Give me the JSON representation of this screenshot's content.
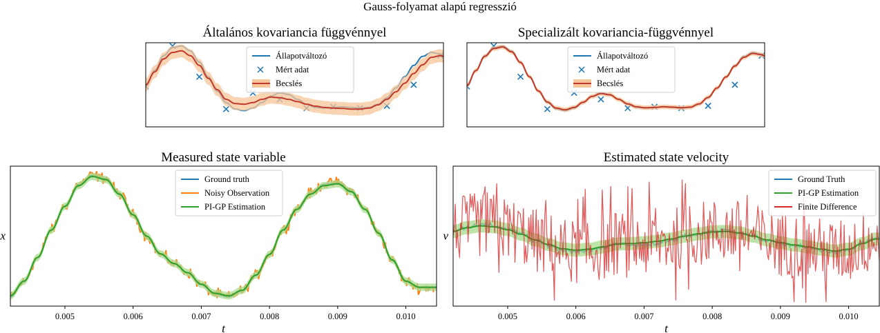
{
  "suptitle": "Gauss-folyamat alapú regresszió",
  "colors": {
    "blue": "#1f77b4",
    "orange": "#ff7f0e",
    "green": "#2ca02c",
    "red_est": "#c0392b",
    "red_fd": "#d62728",
    "band_orange": "#f7c59a",
    "band_green": "#a8dc8c"
  },
  "chart_data": [
    {
      "id": "gp-general",
      "type": "line",
      "title": "Általános kovariancia függvénnyel",
      "xlabel": "",
      "ylabel": "",
      "xlim": [
        0,
        1
      ],
      "ylim": [
        -1.3,
        1.3
      ],
      "ticks": "none",
      "legend": {
        "position": "top-center",
        "entries": [
          "Állapotváltozó",
          "Mért adat",
          "Becslés"
        ]
      },
      "series": [
        {
          "name": "Állapotváltozó",
          "kind": "line",
          "color": "#1f77b4",
          "x": [
            0,
            0.03,
            0.06,
            0.09,
            0.12,
            0.15,
            0.18,
            0.21,
            0.24,
            0.27,
            0.3,
            0.33,
            0.36,
            0.39,
            0.42,
            0.45,
            0.48,
            0.51,
            0.54,
            0.57,
            0.6,
            0.63,
            0.66,
            0.69,
            0.72,
            0.75,
            0.78,
            0.81,
            0.84,
            0.87,
            0.9,
            0.93,
            0.96,
            0.99,
            1.0
          ],
          "y": [
            -0.05,
            0.45,
            0.9,
            1.15,
            1.2,
            1.05,
            0.7,
            0.25,
            -0.2,
            -0.55,
            -0.75,
            -0.8,
            -0.72,
            -0.55,
            -0.35,
            -0.25,
            -0.3,
            -0.45,
            -0.6,
            -0.7,
            -0.72,
            -0.7,
            -0.68,
            -0.7,
            -0.72,
            -0.7,
            -0.6,
            -0.4,
            -0.1,
            0.25,
            0.6,
            0.88,
            1.0,
            0.95,
            0.9
          ]
        },
        {
          "name": "Mért adat",
          "kind": "markers",
          "color": "#1f77b4",
          "x": [
            0.0,
            0.09,
            0.18,
            0.27,
            0.36,
            0.45,
            0.54,
            0.63,
            0.72,
            0.81,
            0.9,
            0.99
          ],
          "y": [
            -0.05,
            1.2,
            0.25,
            -0.75,
            -0.25,
            -0.45,
            -0.72,
            -0.68,
            -0.72,
            -0.65,
            0.0,
            0.9
          ]
        },
        {
          "name": "Becslés",
          "kind": "line-band",
          "color": "#c0392b",
          "band_color": "#f7c59a",
          "x": [
            0,
            0.03,
            0.06,
            0.09,
            0.12,
            0.15,
            0.18,
            0.21,
            0.24,
            0.27,
            0.3,
            0.33,
            0.36,
            0.39,
            0.42,
            0.45,
            0.48,
            0.51,
            0.54,
            0.57,
            0.6,
            0.63,
            0.66,
            0.69,
            0.72,
            0.75,
            0.78,
            0.81,
            0.84,
            0.87,
            0.9,
            0.93,
            0.96,
            0.99,
            1.0
          ],
          "y": [
            0.0,
            0.4,
            0.8,
            1.0,
            1.05,
            0.9,
            0.6,
            0.2,
            -0.15,
            -0.45,
            -0.58,
            -0.6,
            -0.55,
            -0.45,
            -0.38,
            -0.4,
            -0.45,
            -0.52,
            -0.6,
            -0.66,
            -0.7,
            -0.72,
            -0.73,
            -0.75,
            -0.75,
            -0.72,
            -0.62,
            -0.45,
            -0.22,
            0.05,
            0.35,
            0.62,
            0.85,
            0.9,
            0.88
          ],
          "band": 0.2
        }
      ]
    },
    {
      "id": "gp-special",
      "type": "line",
      "title": "Specializált kovariancia-függvénnyel",
      "xlabel": "",
      "ylabel": "",
      "xlim": [
        0,
        1
      ],
      "ylim": [
        -1.3,
        1.3
      ],
      "ticks": "none",
      "legend": {
        "position": "top-center",
        "entries": [
          "Állapotváltozó",
          "Mért adat",
          "Becslés"
        ]
      },
      "series": [
        {
          "name": "Állapotváltozó",
          "kind": "line",
          "color": "#1f77b4",
          "x": [
            0,
            0.03,
            0.06,
            0.09,
            0.12,
            0.15,
            0.18,
            0.21,
            0.24,
            0.27,
            0.3,
            0.33,
            0.36,
            0.39,
            0.42,
            0.45,
            0.48,
            0.51,
            0.54,
            0.57,
            0.6,
            0.63,
            0.66,
            0.69,
            0.72,
            0.75,
            0.78,
            0.81,
            0.84,
            0.87,
            0.9,
            0.93,
            0.96,
            0.99,
            1.0
          ],
          "y": [
            -0.05,
            0.45,
            0.9,
            1.15,
            1.2,
            1.05,
            0.7,
            0.25,
            -0.2,
            -0.55,
            -0.75,
            -0.8,
            -0.72,
            -0.55,
            -0.35,
            -0.25,
            -0.3,
            -0.45,
            -0.6,
            -0.7,
            -0.72,
            -0.7,
            -0.68,
            -0.7,
            -0.72,
            -0.7,
            -0.6,
            -0.4,
            -0.1,
            0.25,
            0.6,
            0.88,
            1.0,
            0.95,
            0.9
          ]
        },
        {
          "name": "Mért adat",
          "kind": "markers",
          "color": "#1f77b4",
          "x": [
            0.0,
            0.09,
            0.18,
            0.27,
            0.36,
            0.45,
            0.54,
            0.63,
            0.72,
            0.81,
            0.9,
            0.99
          ],
          "y": [
            -0.05,
            1.2,
            0.25,
            -0.75,
            -0.25,
            -0.45,
            -0.72,
            -0.68,
            -0.72,
            -0.65,
            0.0,
            0.9
          ]
        },
        {
          "name": "Becslés",
          "kind": "line-band",
          "color": "#c0392b",
          "band_color": "#f7c59a",
          "x": [
            0,
            0.03,
            0.06,
            0.09,
            0.12,
            0.15,
            0.18,
            0.21,
            0.24,
            0.27,
            0.3,
            0.33,
            0.36,
            0.39,
            0.42,
            0.45,
            0.48,
            0.51,
            0.54,
            0.57,
            0.6,
            0.63,
            0.66,
            0.69,
            0.72,
            0.75,
            0.78,
            0.81,
            0.84,
            0.87,
            0.9,
            0.93,
            0.96,
            0.99,
            1.0
          ],
          "y": [
            -0.02,
            0.44,
            0.88,
            1.12,
            1.17,
            1.02,
            0.69,
            0.25,
            -0.19,
            -0.53,
            -0.72,
            -0.77,
            -0.7,
            -0.54,
            -0.36,
            -0.27,
            -0.31,
            -0.45,
            -0.59,
            -0.68,
            -0.71,
            -0.7,
            -0.68,
            -0.69,
            -0.71,
            -0.69,
            -0.59,
            -0.39,
            -0.1,
            0.24,
            0.58,
            0.85,
            0.97,
            0.93,
            0.89
          ],
          "band": 0.07
        }
      ]
    },
    {
      "id": "measured-state",
      "type": "line",
      "title": "Measured state variable",
      "xlabel": "t",
      "ylabel": "x",
      "xlim": [
        0.0042,
        0.01045
      ],
      "ylim": [
        -1.15,
        1.15
      ],
      "xticks": [
        0.005,
        0.006,
        0.007,
        0.008,
        0.009,
        0.01
      ],
      "xticklabels": [
        "0.005",
        "0.006",
        "0.007",
        "0.008",
        "0.009",
        "0.010"
      ],
      "legend": {
        "position": "top-center",
        "entries": [
          "Ground truth",
          "Noisy Observation",
          "PI-GP Estimation"
        ]
      },
      "series": [
        {
          "name": "Ground truth",
          "color": "#1f77b4",
          "x": [
            0.0042,
            0.0044,
            0.0046,
            0.0048,
            0.005,
            0.0052,
            0.0054,
            0.0056,
            0.0058,
            0.006,
            0.0062,
            0.0064,
            0.0066,
            0.0068,
            0.007,
            0.0072,
            0.0074,
            0.0076,
            0.0078,
            0.008,
            0.0082,
            0.0084,
            0.0086,
            0.0088,
            0.009,
            0.0092,
            0.0094,
            0.0096,
            0.0098,
            0.01,
            0.0102,
            0.0104
          ],
          "y": [
            -1.0,
            -0.75,
            -0.35,
            0.1,
            0.5,
            0.85,
            1.0,
            0.95,
            0.7,
            0.35,
            0.0,
            -0.3,
            -0.45,
            -0.6,
            -0.8,
            -0.95,
            -1.0,
            -0.9,
            -0.65,
            -0.3,
            0.1,
            0.45,
            0.7,
            0.85,
            0.88,
            0.75,
            0.45,
            0.05,
            -0.4,
            -0.75,
            -0.85,
            -0.85
          ]
        },
        {
          "name": "Noisy Observation",
          "color": "#ff7f0e",
          "noise": 0.07,
          "x": [
            0.0042,
            0.0044,
            0.0046,
            0.0048,
            0.005,
            0.0052,
            0.0054,
            0.0056,
            0.0058,
            0.006,
            0.0062,
            0.0064,
            0.0066,
            0.0068,
            0.007,
            0.0072,
            0.0074,
            0.0076,
            0.0078,
            0.008,
            0.0082,
            0.0084,
            0.0086,
            0.0088,
            0.009,
            0.0092,
            0.0094,
            0.0096,
            0.0098,
            0.01,
            0.0102,
            0.0104
          ],
          "y": [
            -1.0,
            -0.75,
            -0.35,
            0.1,
            0.5,
            0.85,
            1.0,
            0.95,
            0.7,
            0.35,
            0.0,
            -0.3,
            -0.45,
            -0.6,
            -0.8,
            -0.95,
            -1.0,
            -0.9,
            -0.65,
            -0.3,
            0.1,
            0.45,
            0.7,
            0.85,
            0.88,
            0.75,
            0.45,
            0.05,
            -0.4,
            -0.75,
            -0.85,
            -0.85
          ]
        },
        {
          "name": "PI-GP Estimation",
          "color": "#2ca02c",
          "band": 0.06,
          "band_color": "#a8dc8c",
          "x": [
            0.0042,
            0.0044,
            0.0046,
            0.0048,
            0.005,
            0.0052,
            0.0054,
            0.0056,
            0.0058,
            0.006,
            0.0062,
            0.0064,
            0.0066,
            0.0068,
            0.007,
            0.0072,
            0.0074,
            0.0076,
            0.0078,
            0.008,
            0.0082,
            0.0084,
            0.0086,
            0.0088,
            0.009,
            0.0092,
            0.0094,
            0.0096,
            0.0098,
            0.01,
            0.0102,
            0.0104
          ],
          "y": [
            -0.98,
            -0.74,
            -0.35,
            0.1,
            0.49,
            0.83,
            0.98,
            0.93,
            0.69,
            0.35,
            0.0,
            -0.29,
            -0.45,
            -0.6,
            -0.79,
            -0.94,
            -0.98,
            -0.89,
            -0.64,
            -0.3,
            0.1,
            0.44,
            0.69,
            0.83,
            0.86,
            0.73,
            0.44,
            0.05,
            -0.39,
            -0.74,
            -0.84,
            -0.84
          ]
        }
      ]
    },
    {
      "id": "estimated-velocity",
      "type": "line",
      "title": "Estimated state velocity",
      "xlabel": "t",
      "ylabel": "v",
      "xlim": [
        0.0042,
        0.01045
      ],
      "ylim": [
        -1.5,
        1.5
      ],
      "xticks": [
        0.005,
        0.006,
        0.007,
        0.008,
        0.009,
        0.01
      ],
      "xticklabels": [
        "0.005",
        "0.006",
        "0.007",
        "0.008",
        "0.009",
        "0.010"
      ],
      "legend": {
        "position": "top-right",
        "entries": [
          "Ground Truth",
          "PI-GP Estimation",
          "Finite Difference"
        ]
      },
      "series": [
        {
          "name": "Ground Truth",
          "color": "#1f77b4",
          "noise": 0.04,
          "x": [
            0.0042,
            0.0044,
            0.0046,
            0.0048,
            0.005,
            0.0052,
            0.0054,
            0.0056,
            0.0058,
            0.006,
            0.0062,
            0.0064,
            0.0066,
            0.0068,
            0.007,
            0.0072,
            0.0074,
            0.0076,
            0.0078,
            0.008,
            0.0082,
            0.0084,
            0.0086,
            0.0088,
            0.009,
            0.0092,
            0.0094,
            0.0096,
            0.0098,
            0.01,
            0.0102,
            0.0104
          ],
          "y": [
            0.1,
            0.2,
            0.25,
            0.22,
            0.15,
            0.05,
            -0.1,
            -0.2,
            -0.3,
            -0.32,
            -0.3,
            -0.25,
            -0.15,
            -0.2,
            -0.18,
            -0.15,
            -0.1,
            0.0,
            0.05,
            0.1,
            0.12,
            0.08,
            0.0,
            -0.1,
            -0.15,
            -0.2,
            -0.25,
            -0.3,
            -0.35,
            -0.3,
            -0.15,
            -0.05
          ]
        },
        {
          "name": "PI-GP Estimation",
          "color": "#2ca02c",
          "band": 0.14,
          "band_color": "#a8dc8c",
          "x": [
            0.0042,
            0.0044,
            0.0046,
            0.0048,
            0.005,
            0.0052,
            0.0054,
            0.0056,
            0.0058,
            0.006,
            0.0062,
            0.0064,
            0.0066,
            0.0068,
            0.007,
            0.0072,
            0.0074,
            0.0076,
            0.0078,
            0.008,
            0.0082,
            0.0084,
            0.0086,
            0.0088,
            0.009,
            0.0092,
            0.0094,
            0.0096,
            0.0098,
            0.01,
            0.0102,
            0.0104
          ],
          "y": [
            0.1,
            0.18,
            0.22,
            0.2,
            0.14,
            0.04,
            -0.08,
            -0.18,
            -0.27,
            -0.3,
            -0.28,
            -0.23,
            -0.17,
            -0.16,
            -0.14,
            -0.11,
            -0.06,
            0.0,
            0.05,
            0.09,
            0.1,
            0.07,
            0.0,
            -0.08,
            -0.14,
            -0.19,
            -0.23,
            -0.28,
            -0.32,
            -0.28,
            -0.16,
            -0.06
          ]
        },
        {
          "name": "Finite Difference",
          "color": "#d62728",
          "amplitude": 0.7,
          "x": [
            0.0042,
            0.0044,
            0.0046,
            0.0048,
            0.005,
            0.0052,
            0.0054,
            0.0056,
            0.0058,
            0.006,
            0.0062,
            0.0064,
            0.0066,
            0.0068,
            0.007,
            0.0072,
            0.0074,
            0.0076,
            0.0078,
            0.008,
            0.0082,
            0.0084,
            0.0086,
            0.0088,
            0.009,
            0.0092,
            0.0094,
            0.0096,
            0.0098,
            0.01,
            0.0102,
            0.0104
          ],
          "y": [
            0.1,
            0.2,
            0.25,
            0.22,
            0.15,
            0.05,
            -0.1,
            -0.2,
            -0.3,
            -0.32,
            -0.3,
            -0.25,
            -0.15,
            -0.2,
            -0.18,
            -0.15,
            -0.1,
            0.0,
            0.05,
            0.1,
            0.12,
            0.08,
            0.0,
            -0.1,
            -0.15,
            -0.2,
            -0.25,
            -0.3,
            -0.35,
            -0.3,
            -0.15,
            -0.05
          ]
        }
      ]
    }
  ]
}
